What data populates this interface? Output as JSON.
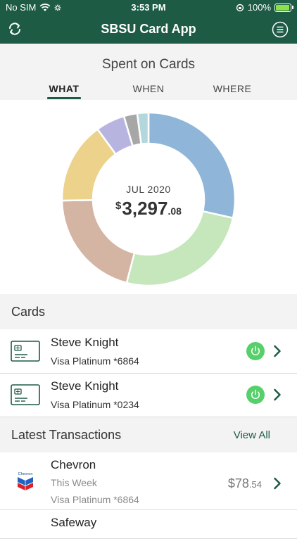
{
  "status_bar": {
    "carrier": "No SIM",
    "time": "3:53 PM",
    "battery": "100%",
    "battery_level": 1.0
  },
  "header": {
    "title": "SBSU Card App"
  },
  "summary": {
    "heading": "Spent on Cards",
    "tabs": [
      {
        "label": "WHAT",
        "active": true
      },
      {
        "label": "WHEN",
        "active": false
      },
      {
        "label": "WHERE",
        "active": false
      }
    ]
  },
  "chart_data": {
    "type": "pie",
    "center_month": "JUL 2020",
    "center_amount": {
      "currency": "$",
      "whole": "3,297",
      "cents": ".08"
    },
    "slices": [
      {
        "fraction": 0.273,
        "color": "#8fb6d9"
      },
      {
        "fraction": 0.245,
        "color": "#c6e6bb"
      },
      {
        "fraction": 0.198,
        "color": "#d4b4a2"
      },
      {
        "fraction": 0.146,
        "color": "#ecd28a"
      },
      {
        "fraction": 0.052,
        "color": "#b8b4e0"
      },
      {
        "fraction": 0.024,
        "color": "#a7a7a7"
      },
      {
        "fraction": 0.02,
        "color": "#b3d7dc"
      }
    ]
  },
  "cards_section": {
    "label": "Cards",
    "items": [
      {
        "name": "Steve Knight",
        "card": "Visa Platinum *6864"
      },
      {
        "name": "Steve Knight",
        "card": "Visa Platinum *0234"
      }
    ]
  },
  "transactions_section": {
    "label": "Latest Transactions",
    "view_all": "View All",
    "items": [
      {
        "merchant": "Chevron",
        "when": "This Week",
        "card": "Visa Platinum *6864",
        "amount_whole": "$78",
        "amount_cents": ".54",
        "logo_text": "Chevron",
        "logo_icon": "chevron-logo-icon"
      },
      {
        "merchant": "Safeway"
      }
    ]
  },
  "colors": {
    "brand": "#1d5b45",
    "toggle_on": "#56d06a",
    "section_bg": "#f3f3f3"
  }
}
